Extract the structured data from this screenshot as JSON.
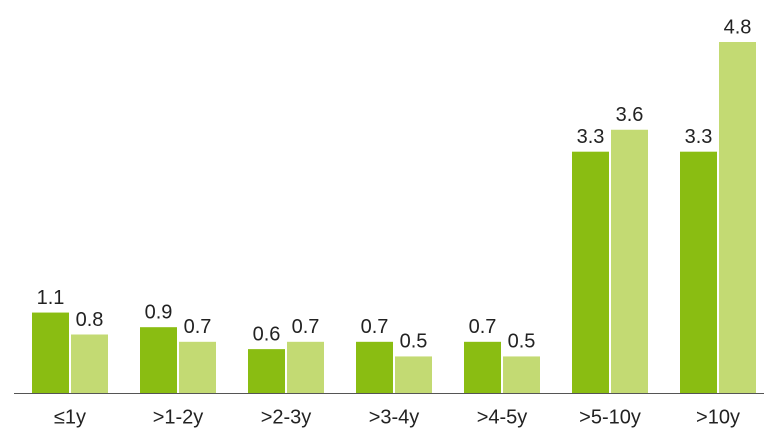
{
  "chart_data": {
    "type": "bar",
    "categories": [
      "≤1y",
      ">1-2y",
      ">2-3y",
      ">3-4y",
      ">4-5y",
      ">5-10y",
      ">10y"
    ],
    "series": [
      {
        "color": "#8abd12",
        "values": [
          1.1,
          0.9,
          0.6,
          0.7,
          0.7,
          3.3,
          3.3
        ]
      },
      {
        "color": "#c3da73",
        "values": [
          0.8,
          0.7,
          0.7,
          0.5,
          0.5,
          3.6,
          4.8
        ]
      }
    ],
    "ylim": [
      0,
      4.8
    ]
  }
}
